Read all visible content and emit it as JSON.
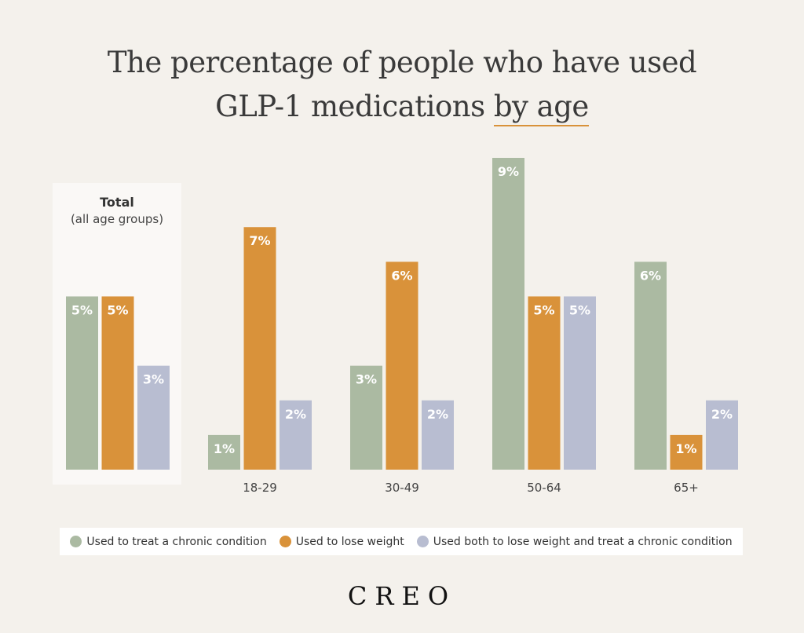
{
  "chart_data": {
    "type": "bar",
    "title_line1": "The percentage of people who have used",
    "title_line2_prefix": "GLP-1 medications ",
    "title_line2_highlight": "by age",
    "total_panel": {
      "title": "Total",
      "subtitle": "(all age groups)"
    },
    "categories": [
      "Total",
      "18-29",
      "30-49",
      "50-64",
      "65+"
    ],
    "category_labels": [
      "",
      "18-29",
      "30-49",
      "50-64",
      "65+"
    ],
    "series": [
      {
        "name": "Used to treat a chronic condition",
        "color": "#abbaa2",
        "values": [
          5,
          1,
          3,
          9,
          6
        ]
      },
      {
        "name": "Used to lose weight",
        "color": "#d9923a",
        "values": [
          5,
          7,
          6,
          5,
          1
        ]
      },
      {
        "name": "Used both to lose weight and treat a chronic condition",
        "color": "#b8bdd1",
        "values": [
          3,
          2,
          2,
          5,
          2
        ]
      }
    ],
    "value_suffix": "%",
    "ylim": [
      0,
      9
    ],
    "grid": false,
    "legend_position": "bottom",
    "highlight_color": "#d9923a"
  },
  "brand": "CREO"
}
